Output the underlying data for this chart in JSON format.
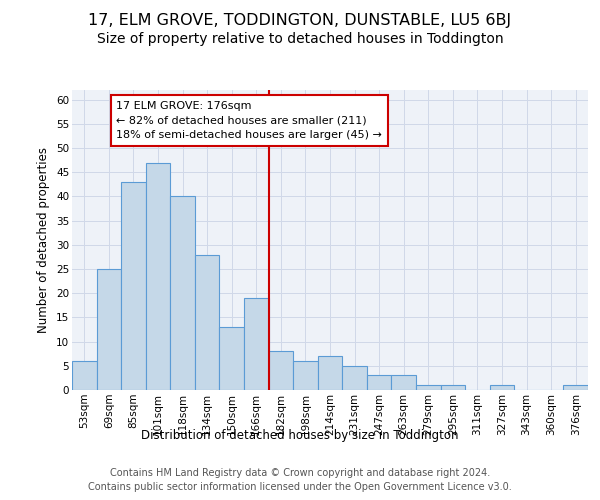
{
  "title": "17, ELM GROVE, TODDINGTON, DUNSTABLE, LU5 6BJ",
  "subtitle": "Size of property relative to detached houses in Toddington",
  "xlabel": "Distribution of detached houses by size in Toddington",
  "ylabel": "Number of detached properties",
  "footer1": "Contains HM Land Registry data © Crown copyright and database right 2024.",
  "footer2": "Contains public sector information licensed under the Open Government Licence v3.0.",
  "annotation_title": "17 ELM GROVE: 176sqm",
  "annotation_line1": "← 82% of detached houses are smaller (211)",
  "annotation_line2": "18% of semi-detached houses are larger (45) →",
  "bar_labels": [
    "53sqm",
    "69sqm",
    "85sqm",
    "101sqm",
    "118sqm",
    "134sqm",
    "150sqm",
    "166sqm",
    "182sqm",
    "198sqm",
    "214sqm",
    "231sqm",
    "247sqm",
    "263sqm",
    "279sqm",
    "295sqm",
    "311sqm",
    "327sqm",
    "343sqm",
    "360sqm",
    "376sqm"
  ],
  "bar_values": [
    6,
    25,
    43,
    47,
    40,
    28,
    13,
    19,
    8,
    6,
    7,
    5,
    3,
    3,
    1,
    1,
    0,
    1,
    0,
    0,
    1
  ],
  "bar_color": "#c5d8e8",
  "bar_edge_color": "#5b9bd5",
  "reference_line_x": 7.5,
  "reference_line_color": "#cc0000",
  "ylim": [
    0,
    62
  ],
  "yticks": [
    0,
    5,
    10,
    15,
    20,
    25,
    30,
    35,
    40,
    45,
    50,
    55,
    60
  ],
  "grid_color": "#d0d8e8",
  "bg_color": "#eef2f8",
  "annotation_box_color": "#ffffff",
  "annotation_box_edge": "#cc0000",
  "title_fontsize": 11.5,
  "subtitle_fontsize": 10,
  "axis_label_fontsize": 8.5,
  "tick_fontsize": 7.5,
  "footer_fontsize": 7,
  "ann_fontsize": 8
}
